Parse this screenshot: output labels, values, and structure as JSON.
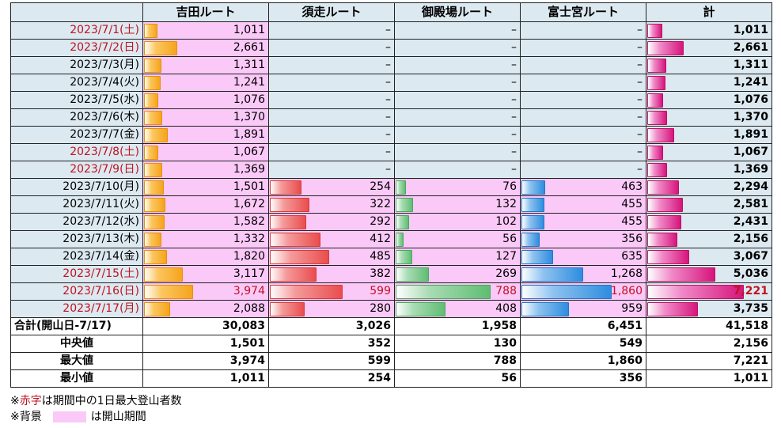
{
  "headers": [
    "",
    "吉田ルート",
    "須走ルート",
    "御殿場ルート",
    "富士宮ルート",
    "計"
  ],
  "rows": [
    {
      "date": "2023/7/1(土)",
      "red": true,
      "yoshida": "1,011",
      "subashiri": "–",
      "gotemba": "–",
      "fujinomiya": "–",
      "total": "1,011"
    },
    {
      "date": "2023/7/2(日)",
      "red": true,
      "yoshida": "2,661",
      "subashiri": "–",
      "gotemba": "–",
      "fujinomiya": "–",
      "total": "2,661"
    },
    {
      "date": "2023/7/3(月)",
      "red": false,
      "yoshida": "1,311",
      "subashiri": "–",
      "gotemba": "–",
      "fujinomiya": "–",
      "total": "1,311"
    },
    {
      "date": "2023/7/4(火)",
      "red": false,
      "yoshida": "1,241",
      "subashiri": "–",
      "gotemba": "–",
      "fujinomiya": "–",
      "total": "1,241"
    },
    {
      "date": "2023/7/5(水)",
      "red": false,
      "yoshida": "1,076",
      "subashiri": "–",
      "gotemba": "–",
      "fujinomiya": "–",
      "total": "1,076"
    },
    {
      "date": "2023/7/6(木)",
      "red": false,
      "yoshida": "1,370",
      "subashiri": "–",
      "gotemba": "–",
      "fujinomiya": "–",
      "total": "1,370"
    },
    {
      "date": "2023/7/7(金)",
      "red": false,
      "yoshida": "1,891",
      "subashiri": "–",
      "gotemba": "–",
      "fujinomiya": "–",
      "total": "1,891"
    },
    {
      "date": "2023/7/8(土)",
      "red": true,
      "yoshida": "1,067",
      "subashiri": "–",
      "gotemba": "–",
      "fujinomiya": "–",
      "total": "1,067"
    },
    {
      "date": "2023/7/9(日)",
      "red": true,
      "yoshida": "1,369",
      "subashiri": "–",
      "gotemba": "–",
      "fujinomiya": "–",
      "total": "1,369"
    },
    {
      "date": "2023/7/10(月)",
      "red": false,
      "yoshida": "1,501",
      "subashiri": "254",
      "gotemba": "76",
      "fujinomiya": "463",
      "total": "2,294"
    },
    {
      "date": "2023/7/11(火)",
      "red": false,
      "yoshida": "1,672",
      "subashiri": "322",
      "gotemba": "132",
      "fujinomiya": "455",
      "total": "2,581"
    },
    {
      "date": "2023/7/12(水)",
      "red": false,
      "yoshida": "1,582",
      "subashiri": "292",
      "gotemba": "102",
      "fujinomiya": "455",
      "total": "2,431"
    },
    {
      "date": "2023/7/13(木)",
      "red": false,
      "yoshida": "1,332",
      "subashiri": "412",
      "gotemba": "56",
      "fujinomiya": "356",
      "total": "2,156"
    },
    {
      "date": "2023/7/14(金)",
      "red": false,
      "yoshida": "1,820",
      "subashiri": "485",
      "gotemba": "127",
      "fujinomiya": "635",
      "total": "3,067"
    },
    {
      "date": "2023/7/15(土)",
      "red": true,
      "yoshida": "3,117",
      "subashiri": "382",
      "gotemba": "269",
      "fujinomiya": "1,268",
      "total": "5,036"
    },
    {
      "date": "2023/7/16(日)",
      "red": true,
      "yoshida": "3,974",
      "subashiri": "599",
      "gotemba": "788",
      "fujinomiya": "1,860",
      "total": "7,221"
    },
    {
      "date": "2023/7/17(月)",
      "red": true,
      "yoshida": "2,088",
      "subashiri": "280",
      "gotemba": "408",
      "fujinomiya": "959",
      "total": "3,735"
    }
  ],
  "summary": [
    {
      "label": "合計(開山日-7/17)",
      "yoshida": "30,083",
      "subashiri": "3,026",
      "gotemba": "1,958",
      "fujinomiya": "6,451",
      "total": "41,518"
    },
    {
      "label": "中央値",
      "yoshida": "1,501",
      "subashiri": "352",
      "gotemba": "130",
      "fujinomiya": "549",
      "total": "2,156"
    },
    {
      "label": "最大値",
      "yoshida": "3,974",
      "subashiri": "599",
      "gotemba": "788",
      "fujinomiya": "1,860",
      "total": "7,221"
    },
    {
      "label": "最小値",
      "yoshida": "1,011",
      "subashiri": "254",
      "gotemba": "56",
      "fujinomiya": "356",
      "total": "1,011"
    }
  ],
  "notes": {
    "line1_prefix": "※",
    "line1_red": "赤字",
    "line1_suffix": "は期間中の1日最大登山者数",
    "line2_prefix": "※背景",
    "line2_suffix": "は開山期間"
  },
  "colors": {
    "header_bg": "#dce9f1",
    "open_period_bg": "#fbc9f8",
    "red_text": "#c1121f",
    "yoshida_bar": "#f6a41c",
    "subashiri_bar": "#e94d4d",
    "gotemba_bar": "#5fbd72",
    "fujinomiya_bar": "#2e8ddf",
    "total_bar": "#d6157c"
  }
}
